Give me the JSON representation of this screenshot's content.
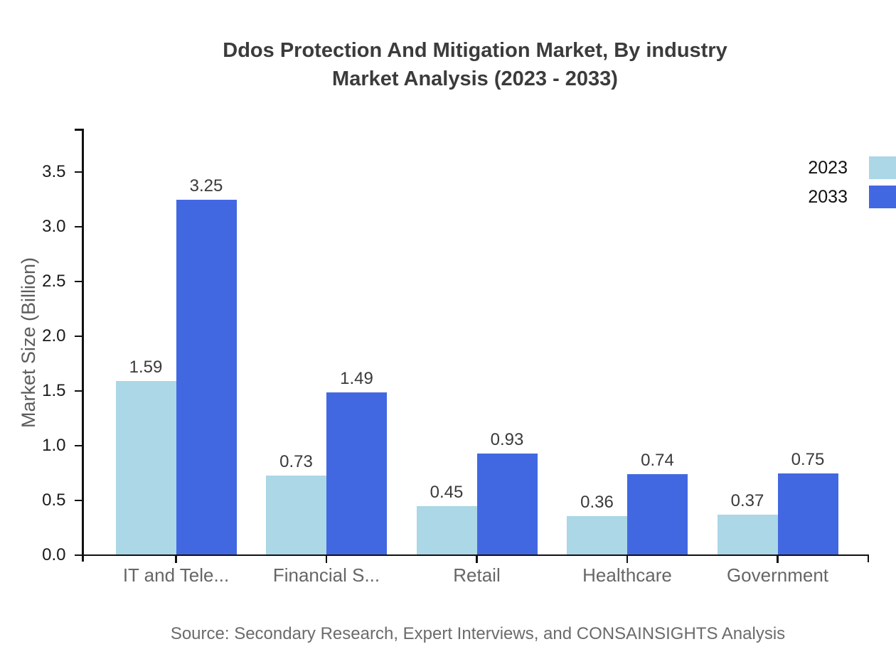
{
  "title": {
    "line1": "Ddos Protection And Mitigation Market, By industry",
    "line2": "Market Analysis (2023 - 2033)"
  },
  "source": {
    "text": "Source: Secondary Research, Expert Interviews, and CONSAINSIGHTS Analysis"
  },
  "colors": {
    "series_2023": "#ABD7E6",
    "series_2033": "#4268E1",
    "axis": "#111111",
    "title_text": "#3b3b3b",
    "category_label": "#666666",
    "tick_label": "#1a1a1a",
    "value_label": "#3a3a3a",
    "source_text": "#6b6b6b"
  },
  "chart_data": {
    "type": "bar",
    "title": "Ddos Protection And Mitigation Market, By industry Market Analysis (2023 - 2033)",
    "categories": [
      "IT and Tele...",
      "Financial S...",
      "Retail",
      "Healthcare",
      "Government"
    ],
    "series": [
      {
        "name": "2023",
        "color": "#ABD7E6",
        "values": [
          1.59,
          0.73,
          0.45,
          0.36,
          0.37
        ]
      },
      {
        "name": "2033",
        "color": "#4268E1",
        "values": [
          3.25,
          1.49,
          0.93,
          0.74,
          0.75
        ]
      }
    ],
    "xlabel": "",
    "ylabel": "Market Size (Billion)",
    "ylim": [
      0,
      3.9
    ],
    "ytick_step": 0.5,
    "ytick_labels": [
      "0.0",
      "0.5",
      "1.0",
      "1.5",
      "2.0",
      "2.5",
      "3.0",
      "3.5"
    ],
    "grid": false,
    "legend_position": "top-right",
    "bar_value_labels": true,
    "value_label_format": "2dp"
  }
}
